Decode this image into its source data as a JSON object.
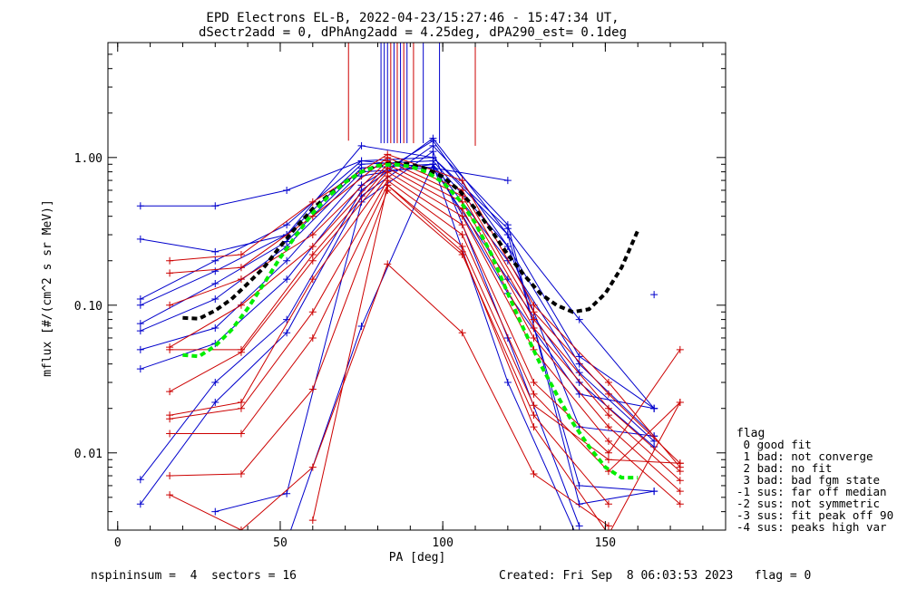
{
  "chart_data": {
    "type": "line",
    "title": "EPD Electrons EL-B, 2022-04-23/15:27:46 - 15:47:34 UT,",
    "subtitle": "dSectr2add = 0, dPhAng2add = 4.25deg, dPA290_est=   0.1deg",
    "xlabel": "PA [deg]",
    "ylabel": "mflux [#/(cm^2 s sr MeV)]",
    "xlim": [
      -3,
      187
    ],
    "ylim": [
      0.003,
      6
    ],
    "yscale": "log",
    "grid": false,
    "xticks": [
      {
        "v": 0,
        "label": "0"
      },
      {
        "v": 50,
        "label": "50"
      },
      {
        "v": 100,
        "label": "100"
      },
      {
        "v": 150,
        "label": "150"
      }
    ],
    "yticks": [
      {
        "v": 0.01,
        "label": "0.01"
      },
      {
        "v": 0.1,
        "label": "0.10"
      },
      {
        "v": 1,
        "label": "1.00"
      }
    ],
    "x_minor_step": 10,
    "legend_title": "flag",
    "legend": [
      " 0 good fit",
      " 1 bad: not converge",
      " 2 bad: no fit",
      " 3 bad: bad fgm state",
      "-1 sus: far off median",
      "-2 sus: not symmetric",
      "-3 sus: fit peak off 90",
      "-4 sus: peaks high var"
    ],
    "footer_left": "nspininsum =  4  sectors = 16",
    "footer_right": "Created: Fri Sep  8 06:03:53 2023   flag = 0",
    "colors": {
      "blue": "#0000cc",
      "red": "#cc0000",
      "black_fit": "#000000",
      "green_fit": "#00ee00"
    },
    "vlines": [
      {
        "x": 71,
        "y": 1.3,
        "color": "red"
      },
      {
        "x": 81,
        "y": 1.25,
        "color": "blue"
      },
      {
        "x": 82,
        "y": 1.25,
        "color": "blue"
      },
      {
        "x": 83,
        "y": 1.25,
        "color": "blue"
      },
      {
        "x": 84,
        "y": 1.25,
        "color": "red"
      },
      {
        "x": 85,
        "y": 1.25,
        "color": "blue"
      },
      {
        "x": 86,
        "y": 1.25,
        "color": "red"
      },
      {
        "x": 87,
        "y": 1.25,
        "color": "blue"
      },
      {
        "x": 88,
        "y": 1.25,
        "color": "red"
      },
      {
        "x": 89,
        "y": 1.25,
        "color": "blue"
      },
      {
        "x": 91,
        "y": 1.25,
        "color": "red"
      },
      {
        "x": 94,
        "y": 1.25,
        "color": "blue"
      },
      {
        "x": 99,
        "y": 1.25,
        "color": "blue"
      },
      {
        "x": 110,
        "y": 1.2,
        "color": "red"
      }
    ],
    "series": [
      {
        "color": "blue",
        "x": [
          7,
          30,
          52,
          75,
          97,
          120
        ],
        "y": [
          0.47,
          0.47,
          0.6,
          0.95,
          0.85,
          0.7
        ]
      },
      {
        "color": "blue",
        "x": [
          7,
          30,
          52,
          75,
          97,
          120,
          142,
          165
        ],
        "y": [
          0.28,
          0.23,
          0.3,
          1.2,
          1.0,
          0.33,
          0.08,
          0.02
        ]
      },
      {
        "color": "blue",
        "x": [
          7,
          30,
          52,
          75,
          97,
          120,
          142,
          165
        ],
        "y": [
          0.11,
          0.2,
          0.35,
          0.95,
          1.0,
          0.3,
          0.045,
          0.02
        ]
      },
      {
        "color": "blue",
        "x": [
          7,
          30,
          52,
          75,
          97,
          120,
          142,
          165
        ],
        "y": [
          0.1,
          0.17,
          0.3,
          0.9,
          0.95,
          0.25,
          0.04,
          0.013
        ]
      },
      {
        "color": "blue",
        "x": [
          7,
          30,
          52,
          75,
          97,
          120,
          142,
          165
        ],
        "y": [
          0.075,
          0.14,
          0.27,
          0.85,
          0.9,
          0.2,
          0.035,
          0.012
        ]
      },
      {
        "color": "blue",
        "x": [
          7,
          30,
          52,
          75,
          97,
          120,
          142,
          165
        ],
        "y": [
          0.067,
          0.11,
          0.25,
          0.8,
          0.85,
          0.15,
          0.03,
          0.011
        ]
      },
      {
        "color": "blue",
        "x": [
          7,
          30,
          52,
          75,
          97,
          120,
          142,
          165
        ],
        "y": [
          0.05,
          0.07,
          0.2,
          0.75,
          0.9,
          0.12,
          0.025,
          0.02
        ]
      },
      {
        "color": "blue",
        "x": [
          7,
          30,
          52,
          75,
          97,
          120,
          142,
          165
        ],
        "y": [
          0.037,
          0.055,
          0.15,
          0.65,
          1.3,
          0.25,
          0.015,
          0.013
        ]
      },
      {
        "color": "blue",
        "x": [
          7,
          30,
          52,
          75,
          97,
          120,
          142,
          165
        ],
        "y": [
          0.0066,
          0.03,
          0.08,
          0.6,
          1.35,
          0.3,
          0.006,
          0.0055
        ]
      },
      {
        "color": "blue",
        "x": [
          7,
          30,
          52,
          75,
          97,
          120,
          142,
          165
        ],
        "y": [
          0.0045,
          0.022,
          0.065,
          0.55,
          1.2,
          0.35,
          0.0045,
          0.0055
        ]
      },
      {
        "color": "blue",
        "x": [
          30,
          52,
          75,
          97,
          120,
          142
        ],
        "y": [
          0.004,
          0.0053,
          0.5,
          1.1,
          0.06,
          0.0032
        ]
      },
      {
        "color": "blue",
        "x": [
          52,
          75,
          97,
          120,
          142
        ],
        "y": [
          0.0025,
          0.072,
          0.9,
          0.03,
          0.0025
        ]
      },
      {
        "color": "blue",
        "x": [
          165
        ],
        "y": [
          0.118
        ]
      },
      {
        "color": "red",
        "x": [
          16,
          38,
          60,
          83,
          106,
          128,
          151,
          173
        ],
        "y": [
          0.2,
          0.22,
          0.5,
          1.05,
          0.7,
          0.1,
          0.03,
          0.008
        ]
      },
      {
        "color": "red",
        "x": [
          16,
          38,
          60,
          83,
          106,
          128,
          151,
          173
        ],
        "y": [
          0.165,
          0.18,
          0.4,
          1.0,
          0.6,
          0.09,
          0.025,
          0.0085
        ]
      },
      {
        "color": "red",
        "x": [
          16,
          38,
          60,
          83,
          106,
          128,
          151,
          173
        ],
        "y": [
          0.1,
          0.15,
          0.3,
          0.95,
          0.55,
          0.08,
          0.02,
          0.0075
        ]
      },
      {
        "color": "red",
        "x": [
          16,
          38,
          60,
          83,
          106,
          128,
          151,
          173
        ],
        "y": [
          0.052,
          0.1,
          0.25,
          0.9,
          0.5,
          0.07,
          0.018,
          0.0065
        ]
      },
      {
        "color": "red",
        "x": [
          16,
          38,
          60,
          83,
          106,
          128,
          151,
          173
        ],
        "y": [
          0.05,
          0.05,
          0.22,
          0.85,
          0.45,
          0.06,
          0.015,
          0.0055
        ]
      },
      {
        "color": "red",
        "x": [
          16,
          38,
          60,
          83,
          106,
          128,
          151,
          173
        ],
        "y": [
          0.026,
          0.048,
          0.2,
          0.8,
          0.4,
          0.05,
          0.012,
          0.0045
        ]
      },
      {
        "color": "red",
        "x": [
          16,
          38,
          60,
          83,
          106,
          128,
          151,
          173
        ],
        "y": [
          0.018,
          0.022,
          0.15,
          0.75,
          0.35,
          0.03,
          0.01,
          0.05
        ]
      },
      {
        "color": "red",
        "x": [
          16,
          38,
          60,
          83,
          106,
          128,
          151,
          173
        ],
        "y": [
          0.017,
          0.02,
          0.09,
          0.7,
          0.3,
          0.025,
          0.0075,
          0.022
        ]
      },
      {
        "color": "red",
        "x": [
          16,
          38,
          60,
          83,
          106,
          128,
          151,
          173
        ],
        "y": [
          0.0135,
          0.0135,
          0.06,
          0.65,
          0.25,
          0.021,
          0.009,
          0.0085
        ]
      },
      {
        "color": "red",
        "x": [
          16,
          38,
          60,
          83,
          106,
          128,
          151
        ],
        "y": [
          0.007,
          0.0072,
          0.027,
          0.6,
          0.22,
          0.018,
          0.0045
        ]
      },
      {
        "color": "red",
        "x": [
          16,
          38,
          60,
          83,
          106,
          128,
          151
        ],
        "y": [
          0.0052,
          0.003,
          0.008,
          0.19,
          0.065,
          0.0072,
          0.0032
        ]
      },
      {
        "color": "red",
        "x": [
          60,
          83,
          106,
          128,
          151,
          173
        ],
        "y": [
          0.0035,
          0.65,
          0.23,
          0.015,
          0.0028,
          0.022
        ]
      }
    ],
    "fits": [
      {
        "color": "black_fit",
        "x": [
          20,
          25,
          30,
          35,
          40,
          45,
          50,
          55,
          60,
          65,
          70,
          75,
          80,
          85,
          90,
          95,
          100,
          105,
          110,
          115,
          120,
          125,
          130,
          135,
          140,
          145,
          150,
          155,
          160
        ],
        "y": [
          0.082,
          0.081,
          0.092,
          0.11,
          0.14,
          0.18,
          0.25,
          0.34,
          0.45,
          0.56,
          0.68,
          0.8,
          0.88,
          0.92,
          0.9,
          0.84,
          0.74,
          0.6,
          0.45,
          0.32,
          0.22,
          0.16,
          0.12,
          0.1,
          0.09,
          0.094,
          0.12,
          0.18,
          0.32
        ]
      },
      {
        "color": "green_fit",
        "x": [
          20,
          25,
          30,
          35,
          40,
          45,
          50,
          55,
          60,
          65,
          70,
          75,
          80,
          85,
          90,
          95,
          100,
          105,
          110,
          115,
          120,
          125,
          130,
          135,
          140,
          145,
          150,
          155,
          160
        ],
        "y": [
          0.046,
          0.045,
          0.053,
          0.068,
          0.095,
          0.14,
          0.21,
          0.3,
          0.42,
          0.55,
          0.68,
          0.8,
          0.88,
          0.9,
          0.87,
          0.8,
          0.68,
          0.52,
          0.36,
          0.22,
          0.12,
          0.068,
          0.04,
          0.025,
          0.016,
          0.011,
          0.008,
          0.0068,
          0.0068
        ]
      }
    ]
  }
}
